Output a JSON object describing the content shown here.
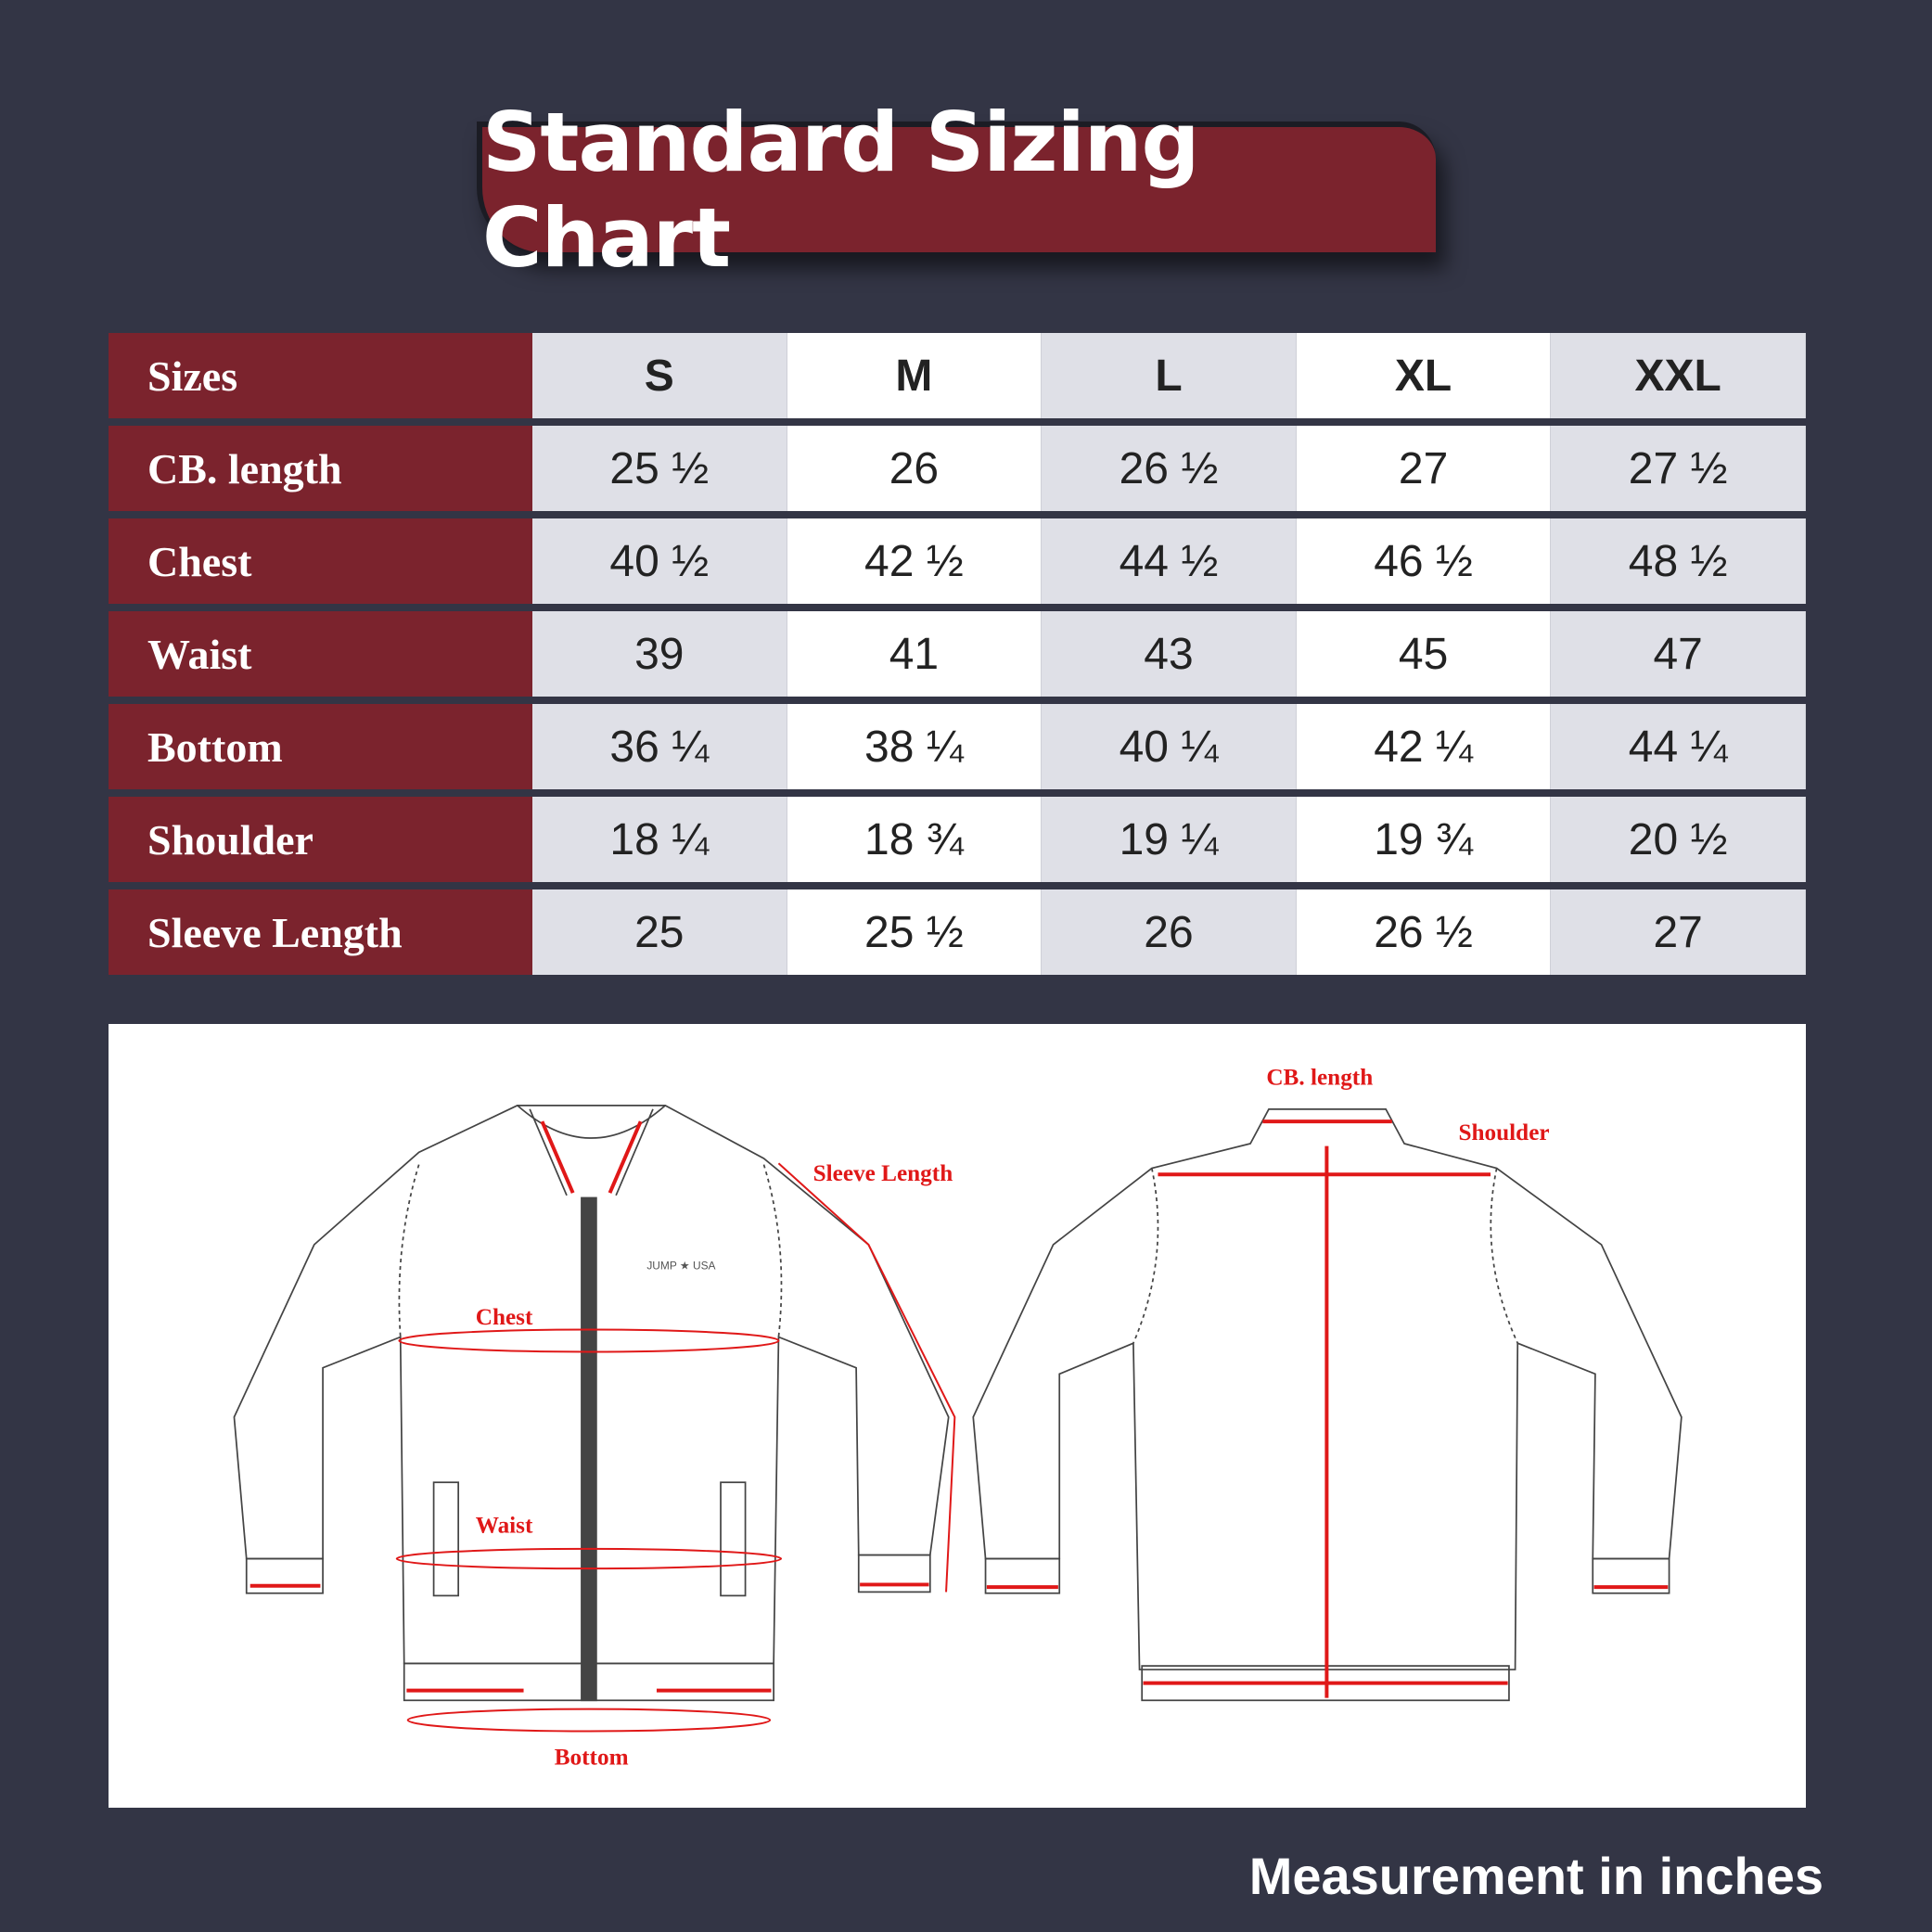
{
  "title": "Standard Sizing Chart",
  "colors": {
    "background": "#333545",
    "accent": "#7b232d",
    "measure": "#e01818"
  },
  "table": {
    "header_label": "Sizes",
    "sizes": [
      "S",
      "M",
      "L",
      "XL",
      "XXL"
    ],
    "rows": [
      {
        "label": "CB. length",
        "values": [
          "25 ½",
          "26",
          "26 ½",
          "27",
          "27 ½"
        ]
      },
      {
        "label": "Chest",
        "values": [
          "40 ½",
          "42 ½",
          "44 ½",
          "46 ½",
          "48 ½"
        ]
      },
      {
        "label": "Waist",
        "values": [
          "39",
          "41",
          "43",
          "45",
          "47"
        ]
      },
      {
        "label": "Bottom",
        "values": [
          "36 ¼",
          "38 ¼",
          "40 ¼",
          "42 ¼",
          "44 ¼"
        ]
      },
      {
        "label": "Shoulder",
        "values": [
          "18 ¼",
          "18 ¾",
          "19 ¼",
          "19 ¾",
          "20 ½"
        ]
      },
      {
        "label": "Sleeve Length",
        "values": [
          "25",
          "25 ½",
          "26",
          "26 ½",
          "27"
        ]
      }
    ]
  },
  "diagram": {
    "front_labels": {
      "sleeve": "Sleeve Length",
      "chest": "Chest",
      "waist": "Waist",
      "bottom": "Bottom"
    },
    "back_labels": {
      "cb_length": "CB. length",
      "shoulder": "Shoulder"
    },
    "logo": "JUMP ★ USA"
  },
  "footer": "Measurement in inches"
}
